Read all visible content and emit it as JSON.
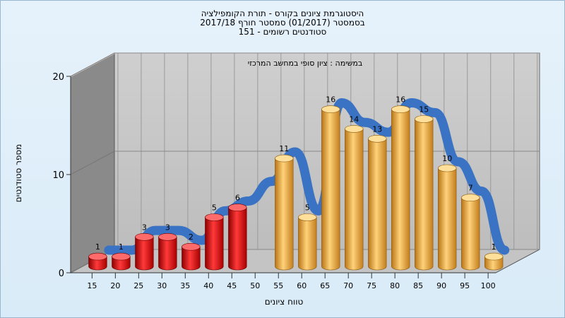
{
  "titles": {
    "line1": "היסטוגרמת ציונים בקורס - תורת הקומפילציה",
    "line2": "בסמסטר  (01/2017)  סמסטר חורף 2017/18",
    "line3": "סטודנטים רשומים - 151"
  },
  "chart_data": {
    "type": "bar",
    "annotation": "במשימה : ציון סופי במחשב המרכזי",
    "xlabel": "טווח ציונים",
    "ylabel": "מספר סטודנטים",
    "ylim": [
      0,
      20
    ],
    "yticks": [
      "0",
      "10",
      "20"
    ],
    "categories": [
      "15",
      "20",
      "25",
      "30",
      "35",
      "40",
      "45",
      "50",
      "55",
      "60",
      "65",
      "70",
      "75",
      "80",
      "85",
      "90",
      "95",
      "100"
    ],
    "values": [
      1,
      1,
      3,
      3,
      2,
      5,
      6,
      null,
      11,
      5,
      16,
      14,
      13,
      16,
      15,
      10,
      7,
      1
    ],
    "fail_color": "#e01818",
    "pass_color": "#e7a33e",
    "curve_color": "#3a73c4",
    "grid": true
  }
}
